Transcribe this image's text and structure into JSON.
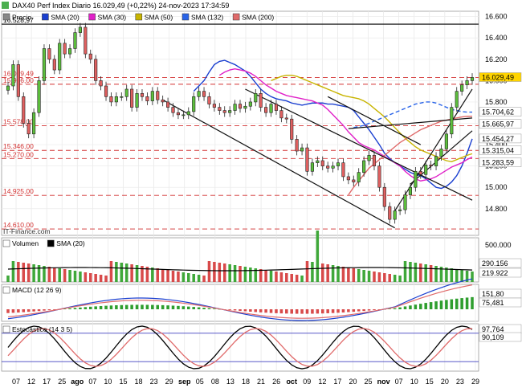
{
  "title": "DAX40 Perf Index Diario 16.029,49 (+0,22%) 24-nov-2023 17:34:59",
  "source": "IT-Finance.com",
  "chart_data": [
    {
      "type": "candlestick",
      "name": "price",
      "legend": [
        {
          "label": "Precio",
          "color": "#888888"
        },
        {
          "label": "SMA (20)",
          "color": "#1a3fd0"
        },
        {
          "label": "SMA (30)",
          "color": "#e020c8"
        },
        {
          "label": "SMA (50)",
          "color": "#c8b400"
        },
        {
          "label": "SMA (132)",
          "color": "#2a64e8"
        },
        {
          "label": "SMA (200)",
          "color": "#e06a6a"
        }
      ],
      "ylim": [
        14550,
        16650
      ],
      "yticks": [
        "16.600",
        "16.400",
        "16.200",
        "16.000",
        "15.800",
        "15.600",
        "15.400",
        "15.200",
        "15.000",
        "14.800"
      ],
      "level_labels": [
        "16.528,97",
        "16.029,49",
        "15.966,00",
        "15.578,00",
        "15.346,00",
        "15.270,00",
        "14.925,00",
        "14.610,00"
      ],
      "right_labels": [
        {
          "text": "16.029,49",
          "bg": "#ffd400",
          "fg": "#000000"
        },
        {
          "text": "15.704,62",
          "bg": "#ffffff",
          "fg": "#2a64e8"
        },
        {
          "text": "15.665,97",
          "bg": "#ffffff",
          "fg": "#e06a6a"
        },
        {
          "text": "15.454,27",
          "bg": "#ffffff",
          "fg": "#1a3fd0"
        },
        {
          "text": "15.315,04",
          "bg": "#ffffff",
          "fg": "#c8b400"
        },
        {
          "text": "15.283,59",
          "bg": "#ffffff",
          "fg": "#e020c8"
        }
      ],
      "closes": [
        15950,
        16150,
        15850,
        15600,
        15500,
        15700,
        16000,
        16300,
        16200,
        16100,
        16350,
        16250,
        16300,
        16450,
        16500,
        16250,
        16200,
        16000,
        15950,
        15850,
        15800,
        15850,
        15850,
        15920,
        15750,
        15880,
        15850,
        15810,
        15900,
        15820,
        15800,
        15750,
        15700,
        15680,
        15680,
        15710,
        15850,
        15900,
        15850,
        15780,
        15750,
        15720,
        15700,
        15720,
        15780,
        15740,
        15760,
        15800,
        15880,
        15750,
        15700,
        15780,
        15720,
        15650,
        15640,
        15450,
        15340,
        15370,
        15150,
        15230,
        15250,
        15200,
        15180,
        15200,
        15230,
        15100,
        15070,
        15050,
        15140,
        15250,
        15300,
        15200,
        15000,
        14820,
        14700,
        14780,
        14790,
        14930,
        15000,
        15150,
        15120,
        15210,
        15200,
        15290,
        15360,
        15500,
        15750,
        15900,
        15960,
        16000,
        16029.49
      ],
      "sma": [
        {
          "name": "SMA (20)",
          "color": "#1a3fd0",
          "values": [
            15900,
            15950,
            16000,
            16080,
            16150,
            16180,
            16190,
            16170,
            16150,
            16120,
            16090,
            16040,
            15980,
            15920,
            15880,
            15850,
            15830,
            15820,
            15810,
            15790,
            15780,
            15770,
            15780,
            15790,
            15790,
            15790,
            15780,
            15780,
            15770,
            15760,
            15750,
            15720,
            15660,
            15600,
            15540,
            15470,
            15400,
            15320,
            15270,
            15230,
            15200,
            15170,
            15140,
            15120,
            15110,
            15080,
            15040,
            15000,
            14990,
            15010,
            15050,
            15110,
            15200,
            15320,
            15454.27
          ]
        },
        {
          "name": "SMA (30)",
          "color": "#e020c8",
          "values": [
            16050,
            16080,
            16100,
            16110,
            16100,
            16090,
            16070,
            16040,
            16000,
            15960,
            15930,
            15900,
            15880,
            15860,
            15850,
            15840,
            15830,
            15820,
            15810,
            15790,
            15770,
            15730,
            15680,
            15630,
            15580,
            15520,
            15470,
            15420,
            15390,
            15370,
            15350,
            15320,
            15290,
            15260,
            15230,
            15200,
            15150,
            15110,
            15080,
            15060,
            15070,
            15080,
            15100,
            15130,
            15160,
            15190,
            15210,
            15230,
            15260,
            15283.59
          ]
        },
        {
          "name": "SMA (50)",
          "color": "#c8b400",
          "values": [
            16000,
            16020,
            16040,
            16050,
            16050,
            16040,
            16020,
            16000,
            15980,
            15960,
            15940,
            15920,
            15900,
            15880,
            15860,
            15850,
            15840,
            15830,
            15810,
            15780,
            15740,
            15700,
            15660,
            15610,
            15560,
            15510,
            15460,
            15420,
            15380,
            15350,
            15330,
            15310,
            15290,
            15270,
            15250,
            15240,
            15260,
            15280,
            15300,
            15315.04
          ]
        },
        {
          "name": "SMA (132)",
          "color": "#2a64e8",
          "values": [
            15560,
            15570,
            15580,
            15600,
            15620,
            15640,
            15660,
            15680,
            15700,
            15720,
            15740,
            15760,
            15780,
            15790,
            15800,
            15800,
            15790,
            15770,
            15750,
            15730,
            15720,
            15710,
            15705,
            15704.62
          ]
        },
        {
          "name": "SMA (200)",
          "color": "#e06a6a",
          "values": [
            14930,
            15000,
            15060,
            15120,
            15180,
            15220,
            15260,
            15300,
            15340,
            15380,
            15420,
            15450,
            15480,
            15510,
            15540,
            15560,
            15580,
            15600,
            15620,
            15630,
            15640,
            15650,
            15660,
            15665,
            15665.97
          ]
        }
      ]
    },
    {
      "type": "bar",
      "name": "volume",
      "legend": [
        {
          "label": "Volumen",
          "color": "#ffffff"
        },
        {
          "label": "SMA (20)",
          "color": "#000000"
        }
      ],
      "yticks": [
        "500.000",
        "290.156",
        "219.922"
      ],
      "right_labels": [
        {
          "text": "290.156",
          "bg": "#ffffff",
          "fg": "#000000"
        },
        {
          "text": "219.922",
          "bg": "#ffffff",
          "fg": "#00a000"
        }
      ],
      "ylim": [
        0,
        600000
      ]
    },
    {
      "type": "line",
      "name": "macd",
      "legend": [
        {
          "label": "MACD (12 26 9)",
          "color": "#000000"
        }
      ],
      "right_labels": [
        {
          "text": "151,80",
          "bg": "#ffffff",
          "fg": "#e06a6a"
        },
        {
          "text": "75,481",
          "bg": "#ffffff",
          "fg": "#00a000"
        }
      ]
    },
    {
      "type": "line",
      "name": "stochastic",
      "legend": [
        {
          "label": "Estocástico (14 3 5)",
          "color": "#000000"
        }
      ],
      "yticks": [
        "97,764",
        "90,109"
      ],
      "right_labels": [
        {
          "text": "97,764",
          "bg": "#ffffff",
          "fg": "#000000"
        },
        {
          "text": "90,109",
          "bg": "#ffffff",
          "fg": "#e06a6a"
        }
      ]
    }
  ],
  "x_labels": [
    "07",
    "12",
    "17",
    "25",
    "ago",
    "07",
    "10",
    "15",
    "18",
    "23",
    "29",
    "sep",
    "05",
    "08",
    "13",
    "18",
    "21",
    "26",
    "oct",
    "09",
    "12",
    "17",
    "20",
    "25",
    "nov",
    "07",
    "10",
    "15",
    "20",
    "23",
    "29"
  ]
}
